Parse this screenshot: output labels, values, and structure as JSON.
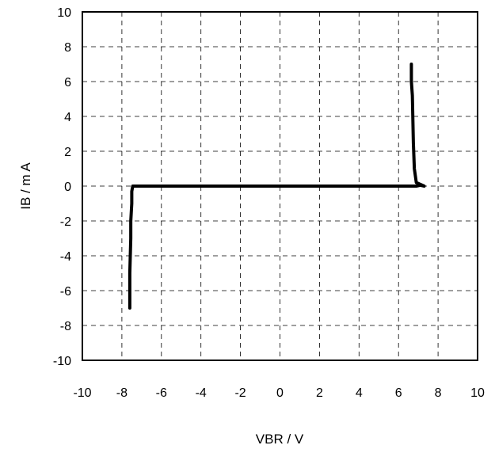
{
  "chart_data": {
    "type": "line",
    "title": "",
    "xlabel": "VBR / V",
    "ylabel": "IB / m A",
    "xlim": [
      -10,
      10
    ],
    "ylim": [
      -10,
      10
    ],
    "xticks": [
      "-10",
      "-8",
      "-6",
      "-4",
      "-2",
      "0",
      "2",
      "4",
      "6",
      "8",
      "10"
    ],
    "yticks": [
      "10",
      "8",
      "6",
      "4",
      "2",
      "0",
      "-2",
      "-4",
      "-6",
      "-8",
      "-10"
    ],
    "grid": true,
    "grid_style": "dashed",
    "series": [
      {
        "color": "#000000",
        "x": [
          -7.6,
          -7.6,
          -7.55,
          -7.55,
          -7.5,
          -7.5,
          -7.45,
          -6.0,
          -3.0,
          0.0,
          3.0,
          6.0,
          6.9,
          7.1,
          7.3,
          6.9,
          6.8,
          6.75,
          6.7,
          6.65,
          6.65
        ],
        "y": [
          -7.0,
          -5.0,
          -3.0,
          -2.0,
          -1.0,
          -0.3,
          0.0,
          0.0,
          0.0,
          0.0,
          0.0,
          0.0,
          0.0,
          0.05,
          0.0,
          0.2,
          1.0,
          2.5,
          5.2,
          6.0,
          7.0
        ]
      }
    ]
  }
}
